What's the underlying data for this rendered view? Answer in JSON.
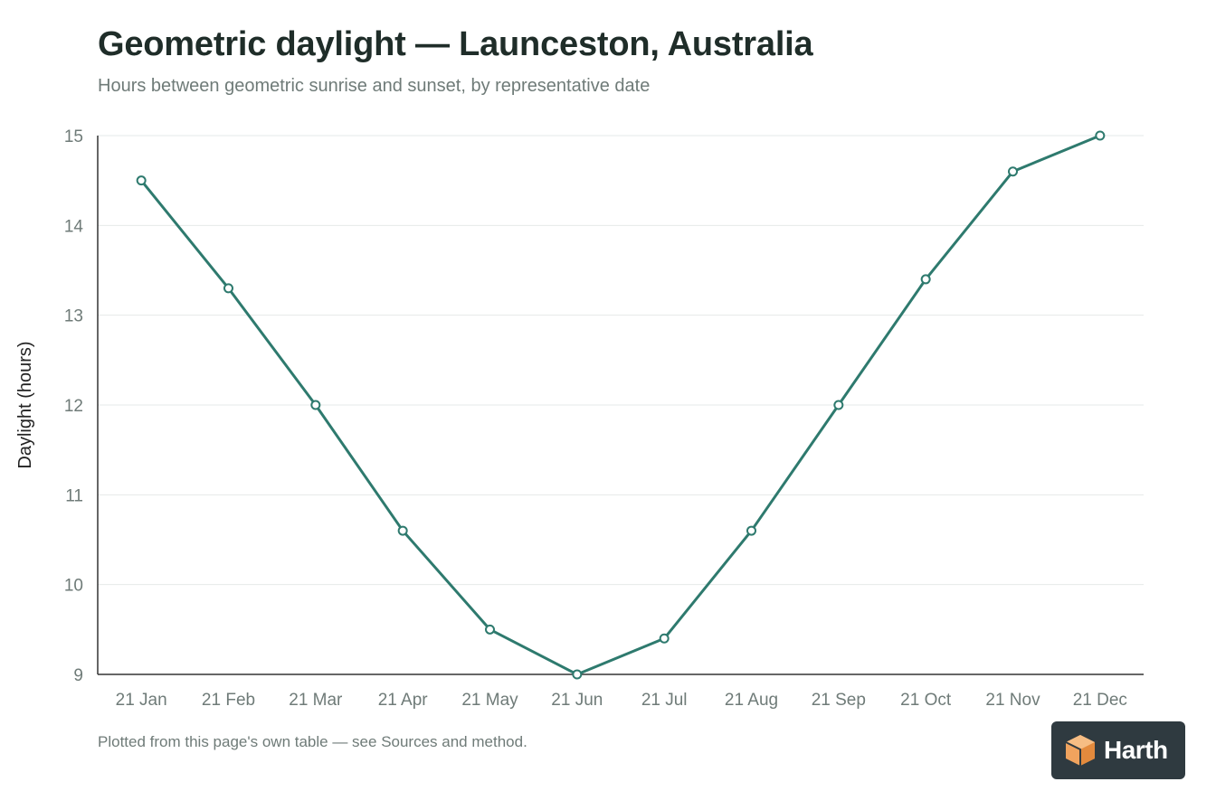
{
  "page": {
    "title": "Geometric daylight — Launceston, Australia",
    "subtitle": "Hours between geometric sunrise and sunset, by representative date",
    "footnote": "Plotted from this page's own table — see Sources and method.",
    "logo_text": "Harth"
  },
  "colors": {
    "line": "#2e7a6e",
    "text_dark": "#1f2d29",
    "text_muted": "#6f7b78",
    "grid": "#e6e9e8",
    "axis": "#333333",
    "logo_bg": "#2f3a40",
    "logo_mark": "#f0a35e"
  },
  "chart_data": {
    "type": "line",
    "title": "Geometric daylight — Launceston, Australia",
    "subtitle": "Hours between geometric sunrise and sunset, by representative date",
    "xlabel": "",
    "ylabel": "Daylight (hours)",
    "ylim": [
      9,
      15
    ],
    "yticks": [
      9,
      10,
      11,
      12,
      13,
      14,
      15
    ],
    "grid": true,
    "categories": [
      "21 Jan",
      "21 Feb",
      "21 Mar",
      "21 Apr",
      "21 May",
      "21 Jun",
      "21 Jul",
      "21 Aug",
      "21 Sep",
      "21 Oct",
      "21 Nov",
      "21 Dec"
    ],
    "series": [
      {
        "values": [
          14.5,
          13.3,
          12.0,
          10.6,
          9.5,
          9.0,
          9.4,
          10.6,
          12.0,
          13.4,
          14.6,
          15.0
        ]
      }
    ]
  }
}
